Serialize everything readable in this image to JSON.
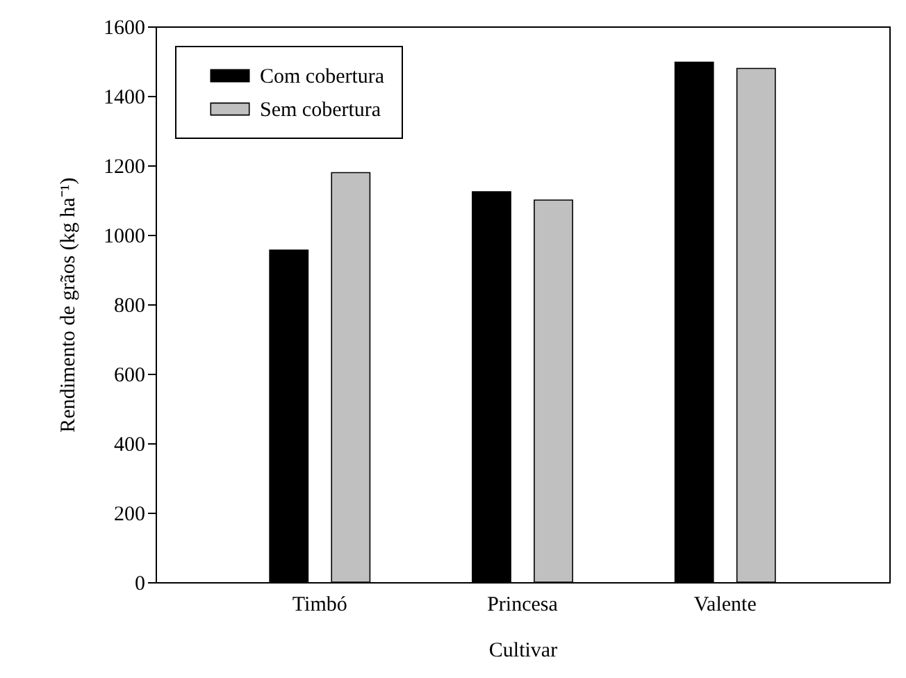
{
  "chart_data": {
    "type": "bar",
    "xlabel": "Cultivar",
    "ylabel": "Rendimento de grãos (kg ha⁻¹)",
    "categories": [
      "Timbó",
      "Princesa",
      "Valente"
    ],
    "series": [
      {
        "name": "Com cobertura",
        "color": "#000000",
        "values": [
          956,
          1124,
          1497
        ]
      },
      {
        "name": "Sem cobertura",
        "color": "#c0c0c0",
        "values": [
          1179,
          1100,
          1479
        ]
      }
    ],
    "ylim": [
      0,
      1600
    ],
    "yticks": [
      0,
      200,
      400,
      600,
      800,
      1000,
      1200,
      1400,
      1600
    ],
    "grid": false,
    "legend": "top left"
  }
}
